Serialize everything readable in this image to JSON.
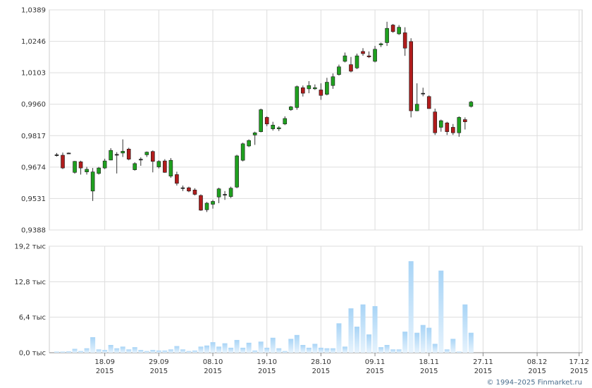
{
  "chart_data": [
    {
      "type": "candlestick",
      "y_ticks": [
        "1,0389",
        "1,0246",
        "1,0103",
        "0,9960",
        "0,9817",
        "0,9674",
        "0,9531",
        "0,9388"
      ],
      "ylim": [
        0.9388,
        1.0389
      ],
      "grid": true,
      "x_ticks": [
        {
          "i": 8,
          "day": "18.09",
          "year": "2015"
        },
        {
          "i": 17,
          "day": "29.09",
          "year": "2015"
        },
        {
          "i": 26,
          "day": "08.10",
          "year": "2015"
        },
        {
          "i": 35,
          "day": "19.10",
          "year": "2015"
        },
        {
          "i": 44,
          "day": "28.10",
          "year": "2015"
        },
        {
          "i": 53,
          "day": "09.11",
          "year": "2015"
        },
        {
          "i": 62,
          "day": "18.11",
          "year": "2015"
        },
        {
          "i": 71,
          "day": "27.11",
          "year": "2015"
        },
        {
          "i": 80,
          "day": "08.12",
          "year": "2015"
        },
        {
          "i": 87,
          "day": "17.12",
          "year": "2015"
        }
      ],
      "up_color": "#1fa01f",
      "down_color": "#b01c1c",
      "doji_color": "#222222",
      "candles": [
        [
          0.9728,
          0.9738,
          0.9722,
          0.973
        ],
        [
          0.9728,
          0.974,
          0.9665,
          0.967
        ],
        [
          0.9738,
          0.974,
          0.9736,
          0.9738
        ],
        [
          0.965,
          0.9702,
          0.9644,
          0.97
        ],
        [
          0.9698,
          0.9703,
          0.964,
          0.967
        ],
        [
          0.9652,
          0.9675,
          0.964,
          0.9664
        ],
        [
          0.9565,
          0.967,
          0.952,
          0.9652
        ],
        [
          0.9645,
          0.9675,
          0.964,
          0.967
        ],
        [
          0.967,
          0.9712,
          0.9665,
          0.9702
        ],
        [
          0.9706,
          0.976,
          0.9705,
          0.975
        ],
        [
          0.9732,
          0.9742,
          0.9645,
          0.9728
        ],
        [
          0.9738,
          0.98,
          0.972,
          0.9746
        ],
        [
          0.9756,
          0.9762,
          0.9705,
          0.971
        ],
        [
          0.9662,
          0.9696,
          0.9658,
          0.969
        ],
        [
          0.9706,
          0.9718,
          0.968,
          0.971
        ],
        [
          0.973,
          0.9745,
          0.972,
          0.9742
        ],
        [
          0.9745,
          0.975,
          0.965,
          0.97
        ],
        [
          0.9675,
          0.9705,
          0.9668,
          0.97
        ],
        [
          0.9702,
          0.971,
          0.9648,
          0.965
        ],
        [
          0.9633,
          0.9715,
          0.9625,
          0.9705
        ],
        [
          0.964,
          0.9653,
          0.959,
          0.96
        ],
        [
          0.958,
          0.959,
          0.9565,
          0.9577
        ],
        [
          0.958,
          0.9585,
          0.956,
          0.9565
        ],
        [
          0.957,
          0.9578,
          0.9545,
          0.955
        ],
        [
          0.9545,
          0.955,
          0.9475,
          0.9478
        ],
        [
          0.948,
          0.9515,
          0.947,
          0.951
        ],
        [
          0.9505,
          0.9525,
          0.9485,
          0.9518
        ],
        [
          0.9538,
          0.958,
          0.951,
          0.9575
        ],
        [
          0.955,
          0.9565,
          0.9525,
          0.955
        ],
        [
          0.954,
          0.9585,
          0.9533,
          0.9578
        ],
        [
          0.9583,
          0.973,
          0.9578,
          0.9725
        ],
        [
          0.9705,
          0.9785,
          0.97,
          0.978
        ],
        [
          0.977,
          0.98,
          0.9765,
          0.9795
        ],
        [
          0.982,
          0.9835,
          0.9775,
          0.983
        ],
        [
          0.9835,
          0.994,
          0.9832,
          0.9935
        ],
        [
          0.99,
          0.9905,
          0.986,
          0.987
        ],
        [
          0.9848,
          0.988,
          0.984,
          0.9865
        ],
        [
          0.9848,
          0.986,
          0.9838,
          0.9853
        ],
        [
          0.987,
          0.9905,
          0.9865,
          0.9895
        ],
        [
          0.9935,
          0.9952,
          0.993,
          0.9948
        ],
        [
          0.9945,
          1.0045,
          0.9935,
          1.004
        ],
        [
          1.0035,
          1.0045,
          0.9995,
          1.001
        ],
        [
          1.003,
          1.0065,
          1.001,
          1.0045
        ],
        [
          1.003,
          1.005,
          1.0025,
          1.0035
        ],
        [
          1.0025,
          1.0055,
          0.998,
          1.0
        ],
        [
          1.0005,
          1.008,
          1.0,
          1.006
        ],
        [
          1.0045,
          1.01,
          1.003,
          1.0085
        ],
        [
          1.0095,
          1.014,
          1.009,
          1.013
        ],
        [
          1.0155,
          1.0195,
          1.015,
          1.018
        ],
        [
          1.014,
          1.0175,
          1.0105,
          1.011
        ],
        [
          1.0125,
          1.019,
          1.012,
          1.018
        ],
        [
          1.02,
          1.0215,
          1.018,
          1.019
        ],
        [
          1.018,
          1.02,
          1.017,
          1.0175
        ],
        [
          1.0155,
          1.0225,
          1.015,
          1.021
        ],
        [
          1.023,
          1.024,
          1.022,
          1.0235
        ],
        [
          1.024,
          1.0335,
          1.0225,
          1.0305
        ],
        [
          1.032,
          1.0325,
          1.0285,
          1.029
        ],
        [
          1.028,
          1.032,
          1.0275,
          1.031
        ],
        [
          1.0285,
          1.031,
          1.018,
          1.0215
        ],
        [
          1.0245,
          1.026,
          0.99,
          0.993
        ],
        [
          0.993,
          1.0055,
          0.9928,
          0.996
        ],
        [
          1.001,
          1.0035,
          0.9996,
          1.001
        ],
        [
          0.9995,
          1.0,
          0.994,
          0.994
        ],
        [
          0.9925,
          0.994,
          0.982,
          0.983
        ],
        [
          0.9855,
          0.989,
          0.9835,
          0.9885
        ],
        [
          0.9875,
          0.988,
          0.982,
          0.9835
        ],
        [
          0.9855,
          0.987,
          0.982,
          0.983
        ],
        [
          0.983,
          0.9905,
          0.9812,
          0.99
        ],
        [
          0.989,
          0.99,
          0.9845,
          0.988
        ],
        [
          0.995,
          0.9975,
          0.9945,
          0.997
        ]
      ]
    },
    {
      "type": "bar",
      "y_ticks": [
        "19,2 тыс",
        "12,8 тыс",
        "6,4 тыс",
        "0,0 тыс"
      ],
      "ylim": [
        0,
        19.2
      ],
      "unit": "тыс",
      "grid": true,
      "bar_color_top": "#a8d4f6",
      "bar_color_bottom": "#e6f3fd",
      "volumes": [
        0.2,
        0.2,
        0.25,
        0.7,
        0.3,
        0.8,
        2.8,
        0.6,
        0.5,
        1.4,
        0.8,
        1.1,
        0.6,
        1.0,
        0.5,
        0.3,
        0.5,
        0.4,
        0.4,
        0.6,
        1.2,
        0.6,
        0.3,
        0.4,
        1.1,
        1.3,
        1.9,
        1.1,
        1.7,
        0.9,
        2.3,
        0.9,
        1.8,
        0.4,
        2.0,
        0.9,
        2.7,
        0.8,
        0.3,
        2.5,
        3.2,
        1.4,
        0.9,
        1.6,
        0.9,
        0.8,
        0.8,
        5.3,
        1.1,
        8.0,
        4.7,
        8.7,
        3.3,
        8.4,
        1.0,
        1.4,
        0.6,
        0.6,
        3.8,
        16.5,
        3.6,
        5.0,
        4.5,
        1.6,
        14.8,
        0.6,
        2.5,
        0.2,
        8.7,
        3.6
      ],
      "x_ticks_ref": "see first chart"
    }
  ],
  "credit": "© 1994–2025 Finmarket.ru"
}
